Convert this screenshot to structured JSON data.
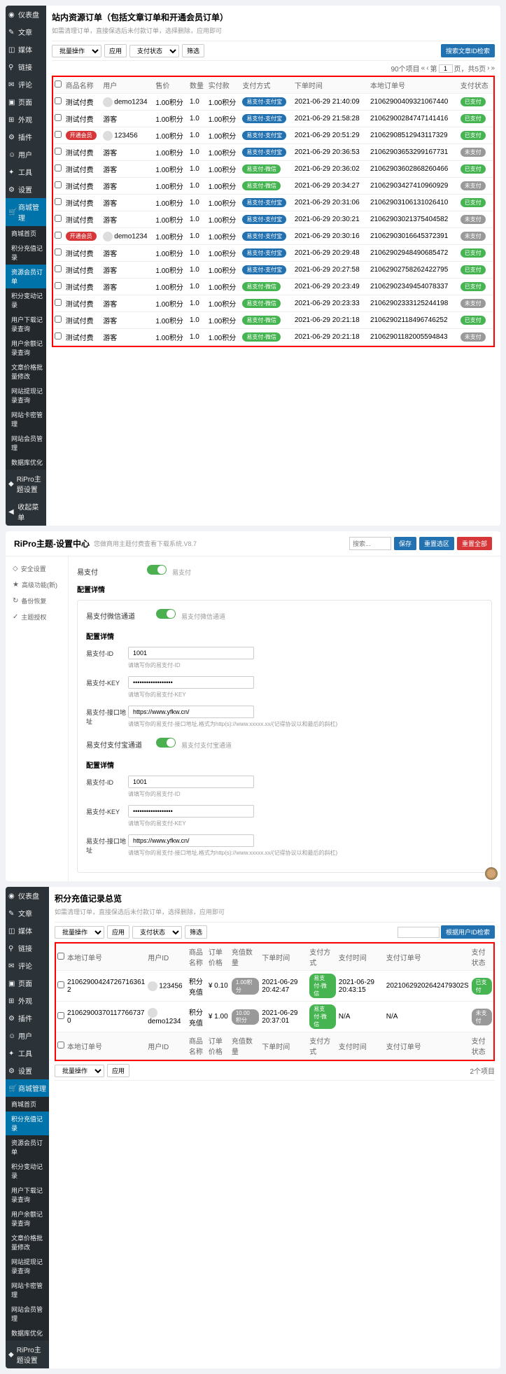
{
  "section1": {
    "sidebar": [
      {
        "icon": "◉",
        "label": "仪表盘"
      },
      {
        "icon": "✎",
        "label": "文章"
      },
      {
        "icon": "◫",
        "label": "媒体"
      },
      {
        "icon": "⚲",
        "label": "链接"
      },
      {
        "icon": "✉",
        "label": "评论"
      },
      {
        "icon": "▣",
        "label": "页面"
      },
      {
        "icon": "⊞",
        "label": "外观"
      },
      {
        "icon": "⚙",
        "label": "插件"
      },
      {
        "icon": "☺",
        "label": "用户"
      },
      {
        "icon": "✦",
        "label": "工具"
      },
      {
        "icon": "⚙",
        "label": "设置"
      }
    ],
    "shop_label": "商城管理",
    "subs": [
      "商城首页",
      "积分充值记录",
      "资源会员订单",
      "积分变动记录",
      "用户下载记录查询",
      "用户余额记录查询",
      "文章价格批量修改",
      "网站提现记录查询",
      "网站卡密管理",
      "网站会员管理",
      "数据库优化"
    ],
    "active_sub": 2,
    "ripro": "RiPro主题设置",
    "collapse": "收起菜单",
    "title": "站内资源订单（包括文章订单和开通会员订单）",
    "subtitle": "如需清理订单，直接保选后未付款订单，选择删除，应用即可",
    "batch": "批量操作",
    "apply": "应用",
    "paystatus": "支付状态",
    "filter": "筛选",
    "search_btn": "搜索文章ID检索",
    "pager": {
      "total": "90个项目",
      "page": "1",
      "of": "页，共5页"
    },
    "cols": [
      "商品名称",
      "用户",
      "售价",
      "数量",
      "实付款",
      "支付方式",
      "下单时间",
      "本地订单号",
      "支付状态"
    ],
    "rows": [
      {
        "name": "测试付费",
        "nameType": "text",
        "user": "demo1234",
        "avatar": true,
        "price": "1.00积分",
        "qty": "1.0",
        "paid": "1.00积分",
        "pay": "易支付-支付宝",
        "payColor": "blue",
        "time": "2021-06-29 21:40:09",
        "order": "21062900409321067440",
        "status": "已支付",
        "statusColor": "green"
      },
      {
        "name": "测试付费",
        "nameType": "text",
        "user": "游客",
        "avatar": false,
        "price": "1.00积分",
        "qty": "1.0",
        "paid": "1.00积分",
        "pay": "易支付-支付宝",
        "payColor": "blue",
        "time": "2021-06-29 21:58:28",
        "order": "21062900284747141416",
        "status": "已支付",
        "statusColor": "green"
      },
      {
        "name": "开通会员",
        "nameType": "badge",
        "user": "123456",
        "avatar": true,
        "price": "1.00积分",
        "qty": "1.0",
        "paid": "1.00积分",
        "pay": "易支付-支付宝",
        "payColor": "blue",
        "time": "2021-06-29 20:51:29",
        "order": "21062908512943117329",
        "status": "已支付",
        "statusColor": "green"
      },
      {
        "name": "测试付费",
        "nameType": "text",
        "user": "游客",
        "avatar": false,
        "price": "1.00积分",
        "qty": "1.0",
        "paid": "1.00积分",
        "pay": "易支付-支付宝",
        "payColor": "blue",
        "time": "2021-06-29 20:36:53",
        "order": "21062903653299167731",
        "status": "未支付",
        "statusColor": "gray"
      },
      {
        "name": "测试付费",
        "nameType": "text",
        "user": "游客",
        "avatar": false,
        "price": "1.00积分",
        "qty": "1.0",
        "paid": "1.00积分",
        "pay": "易支付-微信",
        "payColor": "green",
        "time": "2021-06-29 20:36:02",
        "order": "21062903602868260466",
        "status": "已支付",
        "statusColor": "green"
      },
      {
        "name": "测试付费",
        "nameType": "text",
        "user": "游客",
        "avatar": false,
        "price": "1.00积分",
        "qty": "1.0",
        "paid": "1.00积分",
        "pay": "易支付-微信",
        "payColor": "green",
        "time": "2021-06-29 20:34:27",
        "order": "21062903427410960929",
        "status": "未支付",
        "statusColor": "gray"
      },
      {
        "name": "测试付费",
        "nameType": "text",
        "user": "游客",
        "avatar": false,
        "price": "1.00积分",
        "qty": "1.0",
        "paid": "1.00积分",
        "pay": "易支付-支付宝",
        "payColor": "blue",
        "time": "2021-06-29 20:31:06",
        "order": "21062903106131026410",
        "status": "已支付",
        "statusColor": "green"
      },
      {
        "name": "测试付费",
        "nameType": "text",
        "user": "游客",
        "avatar": false,
        "price": "1.00积分",
        "qty": "1.0",
        "paid": "1.00积分",
        "pay": "易支付-支付宝",
        "payColor": "blue",
        "time": "2021-06-29 20:30:21",
        "order": "21062903021375404582",
        "status": "未支付",
        "statusColor": "gray"
      },
      {
        "name": "开通会员",
        "nameType": "badge",
        "user": "demo1234",
        "avatar": true,
        "price": "1.00积分",
        "qty": "1.0",
        "paid": "1.00积分",
        "pay": "易支付-支付宝",
        "payColor": "blue",
        "time": "2021-06-29 20:30:16",
        "order": "21062903016645372391",
        "status": "未支付",
        "statusColor": "gray"
      },
      {
        "name": "测试付费",
        "nameType": "text",
        "user": "游客",
        "avatar": false,
        "price": "1.00积分",
        "qty": "1.0",
        "paid": "1.00积分",
        "pay": "易支付-支付宝",
        "payColor": "blue",
        "time": "2021-06-29 20:29:48",
        "order": "21062902948490685472",
        "status": "已支付",
        "statusColor": "green"
      },
      {
        "name": "测试付费",
        "nameType": "text",
        "user": "游客",
        "avatar": false,
        "price": "1.00积分",
        "qty": "1.0",
        "paid": "1.00积分",
        "pay": "易支付-支付宝",
        "payColor": "blue",
        "time": "2021-06-29 20:27:58",
        "order": "21062902758262422795",
        "status": "已支付",
        "statusColor": "green"
      },
      {
        "name": "测试付费",
        "nameType": "text",
        "user": "游客",
        "avatar": false,
        "price": "1.00积分",
        "qty": "1.0",
        "paid": "1.00积分",
        "pay": "易支付-微信",
        "payColor": "green",
        "time": "2021-06-29 20:23:49",
        "order": "21062902349454078337",
        "status": "已支付",
        "statusColor": "green"
      },
      {
        "name": "测试付费",
        "nameType": "text",
        "user": "游客",
        "avatar": false,
        "price": "1.00积分",
        "qty": "1.0",
        "paid": "1.00积分",
        "pay": "易支付-微信",
        "payColor": "green",
        "time": "2021-06-29 20:23:33",
        "order": "21062902333125244198",
        "status": "未支付",
        "statusColor": "gray"
      },
      {
        "name": "测试付费",
        "nameType": "text",
        "user": "游客",
        "avatar": false,
        "price": "1.00积分",
        "qty": "1.0",
        "paid": "1.00积分",
        "pay": "易支付-微信",
        "payColor": "green",
        "time": "2021-06-29 20:21:18",
        "order": "21062902118496746252",
        "status": "已支付",
        "statusColor": "green"
      },
      {
        "name": "测试付费",
        "nameType": "text",
        "user": "游客",
        "avatar": false,
        "price": "1.00积分",
        "qty": "1.0",
        "paid": "1.00积分",
        "pay": "易支付-微信",
        "payColor": "green",
        "time": "2021-06-29 20:21:18",
        "order": "21062901182005594843",
        "status": "未支付",
        "statusColor": "gray"
      }
    ]
  },
  "section2": {
    "title": "RiPro主题-设置中心",
    "subtitle": "您做商用主题付费查看下载系统.V8.7",
    "save": "保存",
    "reset_section": "重置选区",
    "reset_all": "重置全部",
    "search_placeholder": "搜索...",
    "side": [
      "安全设置",
      "高级功能(新)",
      "备份恢复",
      "主题授权"
    ],
    "easypay": "易支付",
    "wechat_channel": "易支付微信通道",
    "wechat_hint": "易支付微信通道",
    "config_detail": "配置详情",
    "id_label": "易支付-ID",
    "id_val": "1001",
    "id_hint": "请填写你的易支付-ID",
    "key_label": "易支付-KEY",
    "key_val": "••••••••••••••••••",
    "key_hint": "请填写你的易支付-KEY",
    "api_label": "易支付-接口地址",
    "api_val": "https://www.yfkw.cn/",
    "api_hint": "请填写你的易支付-接口地址,格式为http(s)://www.xxxxx.xx/(记得协议以和最后的斜杠)",
    "alipay_channel": "易支付支付宝通道",
    "alipay_hint": "易支付支付宝通道"
  },
  "section3": {
    "sidebar": [
      {
        "icon": "◉",
        "label": "仪表盘"
      },
      {
        "icon": "✎",
        "label": "文章"
      },
      {
        "icon": "◫",
        "label": "媒体"
      },
      {
        "icon": "⚲",
        "label": "链接"
      },
      {
        "icon": "✉",
        "label": "评论"
      },
      {
        "icon": "▣",
        "label": "页面"
      },
      {
        "icon": "⊞",
        "label": "外观"
      },
      {
        "icon": "⚙",
        "label": "插件"
      },
      {
        "icon": "☺",
        "label": "用户"
      },
      {
        "icon": "✦",
        "label": "工具"
      },
      {
        "icon": "⚙",
        "label": "设置"
      }
    ],
    "shop_label": "商城管理",
    "subs": [
      "商城首页",
      "积分充值记录",
      "资源会员订单",
      "积分变动记录",
      "用户下载记录查询",
      "用户余额记录查询",
      "文章价格批量修改",
      "网站提现记录查询",
      "网站卡密管理",
      "网站会员管理",
      "数据库优化"
    ],
    "active_sub": 1,
    "ripro": "RiPro主题设置",
    "title": "积分充值记录总览",
    "subtitle": "如需清理订单，直接保选后未付款订单，选择删除，应用即可",
    "batch": "批量操作",
    "apply": "应用",
    "paystatus": "支付状态",
    "filter": "筛选",
    "search_btn": "根据用户ID检索",
    "pager": "2个项目",
    "cols": [
      "本地订单号",
      "用户ID",
      "商品名称",
      "订单价格",
      "充值数量",
      "下单时间",
      "支付方式",
      "支付时间",
      "支付订单号",
      "支付状态"
    ],
    "rows": [
      {
        "order": "21062900424726716361\n2",
        "user": "123456",
        "product": "积分充值",
        "price": "¥ 0.10",
        "qty": "1.00积分",
        "time": "2021-06-29 20:42:47",
        "pay": "易支付-微信",
        "payColor": "green",
        "paytime": "2021-06-29 20:43:15",
        "payorder": "20210629202642479302S",
        "status": "已支付",
        "statusColor": "green"
      },
      {
        "order": "21062900370117766737\n0",
        "user": "demo1234",
        "product": "积分充值",
        "price": "¥ 1.00",
        "qty": "10.00积分",
        "time": "2021-06-29 20:37:01",
        "pay": "易支付-微信",
        "payColor": "green",
        "paytime": "N/A",
        "payorder": "N/A",
        "status": "未支付",
        "statusColor": "gray"
      }
    ]
  }
}
